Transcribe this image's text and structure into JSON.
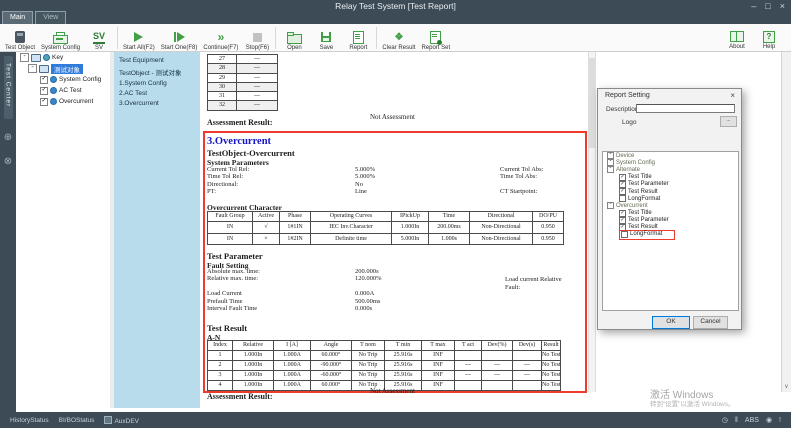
{
  "window": {
    "title": "Relay Test System  [Test Report]",
    "controls": {
      "minimize": "–",
      "maximize": "□",
      "close": "×"
    }
  },
  "tabs": {
    "main": "Main",
    "view": "View"
  },
  "toolbar": {
    "test_object": "Test Object",
    "system_config": "System Config",
    "sv": "SV",
    "start_all": "Start All(F2)",
    "start_one": "Start One(F8)",
    "continue": "Continue(F7)",
    "stop": "Stop(F6)",
    "open": "Open",
    "save": "Save",
    "report": "Report",
    "clear_result": "Clear Result",
    "report_set": "Report Set",
    "about": "About",
    "help": "Help"
  },
  "side_strip": {
    "label": "Test Center"
  },
  "tree": {
    "root": "Key",
    "selected": "测试对象",
    "items": [
      "System Config",
      "AC Test",
      "Overcurrent"
    ]
  },
  "report_nav": {
    "items": [
      "Test Equipment",
      "TestObject - 测试对象",
      "1.System Config",
      "2.AC Test",
      "3.Overcurrent"
    ]
  },
  "report": {
    "top_table": {
      "rows": [
        [
          "27",
          "---"
        ],
        [
          "28",
          "---"
        ],
        [
          "29",
          "---"
        ],
        [
          "30",
          "---"
        ],
        [
          "31",
          "---"
        ],
        [
          "32",
          "---"
        ]
      ]
    },
    "assessment_top": {
      "label": "Assessment Result:",
      "value": "Not Assessment"
    },
    "overcurrent": {
      "heading": "3.Overcurrent",
      "subheading": "TestObject-Overcurrent",
      "system_parameters_title": "System Parameters",
      "system_parameters": [
        {
          "label": "Current Tol Rel:",
          "value": "5.000%",
          "rlabel": "Current Tol Abs:"
        },
        {
          "label": "Time Tol Rel:",
          "value": "5.000%",
          "rlabel": "Time Tol Abs:"
        },
        {
          "label": "Directional:",
          "value": "No",
          "rlabel": ""
        },
        {
          "label": "PT:",
          "value": "Line",
          "rlabel": "CT Startpoint:"
        }
      ],
      "character_title": "Overcurrent Character",
      "character_table": {
        "headers": [
          "Fault Group",
          "Active",
          "Phase",
          "Operating Curves",
          "IPickUp",
          "Time",
          "Directional",
          "DO/PU"
        ],
        "rows": [
          [
            "IN",
            "√",
            "1#1IN",
            "IEC Inv.Character",
            "1.000In",
            "200.00ms",
            "Non-Directional",
            "0.950"
          ],
          [
            "IN",
            "×",
            "1#2IN",
            "Definite time",
            "5.000In",
            "1.000s",
            "Non-Directional",
            "0.950"
          ]
        ]
      },
      "test_parameter_title": "Test Parameter",
      "fault_setting_title": "Fault Setting",
      "fault_setting": [
        {
          "label": "Absolute max. time:",
          "value": "200.000s",
          "rlabel": ""
        },
        {
          "label": "Relative max. time:",
          "value": "120.000%",
          "rlabel": ""
        },
        {
          "label": "",
          "value": "",
          "rlabel": ""
        },
        {
          "label": "Load Current",
          "value": "0.000A",
          "rlabel": ""
        },
        {
          "label": "Prefault Time",
          "value": "500.00ms",
          "rlabel": ""
        },
        {
          "label": "Interval Fault Time",
          "value": "0.000s",
          "rlabel": ""
        }
      ],
      "fault_note_line1": "Load current Relative",
      "fault_note_line2": "Fault:",
      "test_result_title": "Test Result",
      "group_title": "A-N",
      "result_table": {
        "headers": [
          "Index",
          "Relative",
          "I [A]",
          "Angle",
          "T nom",
          "T min",
          "T max",
          "T act",
          "Dev(%)",
          "Dev(s)",
          "Result"
        ],
        "rows": [
          [
            "1",
            "1.000In",
            "1.000A",
            "60.000°",
            "No Trip",
            "25.916s",
            "INF",
            "",
            "",
            "",
            "No Test"
          ],
          [
            "2",
            "1.000In",
            "1.000A",
            "-90.000°",
            "No Trip",
            "25.916s",
            "INF",
            "---",
            "---",
            "---",
            "No Test"
          ],
          [
            "3",
            "1.000In",
            "1.000A",
            "-60.000°",
            "No Trip",
            "25.916s",
            "INF",
            "---",
            "---",
            "---",
            "No Test"
          ],
          [
            "4",
            "1.000In",
            "1.000A",
            "60.000°",
            "No Trip",
            "25.916s",
            "INF",
            "",
            "",
            "",
            "No Test"
          ]
        ]
      },
      "assessment_bottom": {
        "label": "Assessment Result:",
        "value": "Not Assessment"
      }
    }
  },
  "dialog": {
    "title": "Report Setting",
    "close": "×",
    "description_label": "Description",
    "description_value": "",
    "logo_label": "Logo",
    "logo_button": "...",
    "tree": [
      {
        "label": "Device",
        "level": 0,
        "expander": true
      },
      {
        "label": "System Config",
        "level": 0,
        "expander": true
      },
      {
        "label": "Alternate",
        "level": 0,
        "expander": true
      },
      {
        "label": "Test Title",
        "level": 1,
        "checked": true
      },
      {
        "label": "Test Parameter",
        "level": 1,
        "checked": true
      },
      {
        "label": "Test Result",
        "level": 1,
        "checked": true
      },
      {
        "label": "LongFormat",
        "level": 1,
        "checked": false
      },
      {
        "label": "Overcurrent",
        "level": 0,
        "expander": true
      },
      {
        "label": "Test Title",
        "level": 1,
        "checked": true
      },
      {
        "label": "Test Parameter",
        "level": 1,
        "checked": true
      },
      {
        "label": "Test Result",
        "level": 1,
        "checked": true
      },
      {
        "label": "LongFormat",
        "level": 1,
        "checked": false,
        "highlight": true
      }
    ],
    "ok": "OK",
    "cancel": "Cancel"
  },
  "status_bar": {
    "left": [
      "HistoryStatus",
      "BI/BOStatus",
      "AuxDEV"
    ],
    "abs": "ABS"
  },
  "watermark": {
    "line1": "激活 Windows",
    "line2": "转到“设置”以激活 Windows。"
  },
  "icons": {
    "check": "✓",
    "minus": "-",
    "fast_forward": "»",
    "clear": "❖",
    "help": "?",
    "plus_circle": "⊕",
    "close_circle": "⊗",
    "down_arrow": "∨",
    "clock": "◷",
    "pause": "‖",
    "dot_circle": "◉",
    "alert": "!"
  },
  "colors": {
    "titlebar": "#3c4b56",
    "accent_green": "#3f9f46",
    "nav_blue": "#b9dcec",
    "selection_blue": "#2f7bd9",
    "highlight_red": "#ef3b2d",
    "heading_blue": "#1616c8"
  }
}
